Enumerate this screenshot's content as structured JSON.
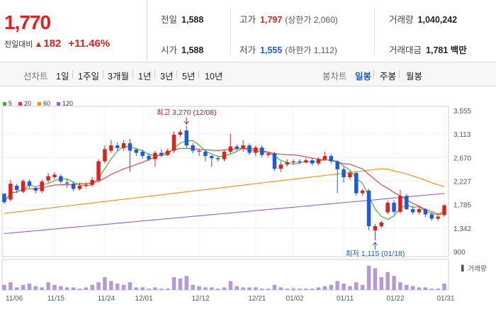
{
  "summary": {
    "current_price": "1,770",
    "change_label": "전일대비",
    "change_value": "182",
    "change_pct": "+11.46%",
    "prev_close_label": "전일",
    "prev_close": "1,588",
    "open_label": "시가",
    "open": "1,588",
    "high_label": "고가",
    "high": "1,797",
    "upper_limit": "(상한가 2,060)",
    "low_label": "저가",
    "low": "1,555",
    "lower_limit": "(하한가 1,112)",
    "volume_label": "거래량",
    "volume": "1,040,242",
    "amount_label": "거래대금",
    "amount": "1,781 백만"
  },
  "toolbar": {
    "line_label": "선차트",
    "line_periods": [
      "1일",
      "1주일",
      "3개월",
      "1년",
      "3년",
      "5년",
      "10년"
    ],
    "candle_label": "봉차트",
    "candle_periods": [
      "일봉",
      "주봉",
      "월봉"
    ],
    "selected_candle": "일봉"
  },
  "colors": {
    "up": "#e02020",
    "down": "#1f5bd8",
    "ma5": "#3aaa35",
    "ma20": "#e0393e",
    "ma60": "#f08c1e",
    "ma120": "#9a5fc9",
    "volume": "#b49ad6"
  },
  "chart_data": {
    "type": "candlestick",
    "moving_averages": [
      "5",
      "20",
      "60",
      "120"
    ],
    "y_ticks": [
      "3,555",
      "3,113",
      "2,670",
      "2,227",
      "1,785",
      "1,342",
      "900"
    ],
    "ylim": [
      900,
      3555
    ],
    "x_ticks": [
      "11/06",
      "11/15",
      "11/24",
      "12/01",
      "12/12",
      "12/21",
      "01/02",
      "01/11",
      "01/22",
      "01/31"
    ],
    "annotations": {
      "high": "최고 3,270 (12/08)",
      "low": "최저 1,115 (01/18)"
    },
    "volume_label": "거래량",
    "candles": [
      [
        1990,
        1830,
        1800,
        2000
      ],
      [
        1880,
        2180,
        1850,
        2250
      ],
      [
        2140,
        2060,
        2000,
        2180
      ],
      [
        2030,
        2230,
        2000,
        2260
      ],
      [
        2220,
        2140,
        2100,
        2260
      ],
      [
        2100,
        2050,
        2000,
        2120
      ],
      [
        2040,
        2220,
        2000,
        2260
      ],
      [
        2240,
        2320,
        2200,
        2380
      ],
      [
        2300,
        2350,
        2260,
        2400
      ],
      [
        2320,
        2220,
        2180,
        2360
      ],
      [
        2200,
        2180,
        2100,
        2260
      ],
      [
        2180,
        2080,
        2040,
        2220
      ],
      [
        2080,
        2140,
        2050,
        2200
      ],
      [
        2140,
        2160,
        2100,
        2200
      ],
      [
        2160,
        2250,
        2120,
        2300
      ],
      [
        2240,
        2600,
        2200,
        2640
      ],
      [
        2600,
        2830,
        2560,
        2900
      ],
      [
        2800,
        2900,
        2760,
        3000
      ],
      [
        2900,
        2850,
        2800,
        2960
      ],
      [
        2850,
        2940,
        2800,
        3000
      ],
      [
        2940,
        2800,
        2400,
        3020
      ],
      [
        2820,
        2760,
        2700,
        2850
      ],
      [
        2780,
        2700,
        2650,
        2820
      ],
      [
        2700,
        2640,
        2600,
        2760
      ],
      [
        2640,
        2760,
        2500,
        2800
      ],
      [
        2760,
        2720,
        2680,
        2830
      ],
      [
        2720,
        2800,
        2700,
        2840
      ],
      [
        2800,
        3100,
        2760,
        3160
      ],
      [
        3100,
        3150,
        3060,
        3200
      ],
      [
        3180,
        2900,
        2850,
        3270
      ],
      [
        2900,
        2800,
        2750,
        2940
      ],
      [
        2800,
        2780,
        2700,
        2840
      ],
      [
        2780,
        2700,
        2600,
        2820
      ],
      [
        2700,
        2660,
        2500,
        2720
      ],
      [
        2660,
        2640,
        2600,
        2700
      ],
      [
        2640,
        2780,
        2600,
        2820
      ],
      [
        2780,
        2880,
        2740,
        3120
      ],
      [
        2880,
        2840,
        2800,
        2920
      ],
      [
        2840,
        2900,
        2780,
        3000
      ],
      [
        2900,
        2760,
        2720,
        2940
      ],
      [
        2760,
        2860,
        2700,
        2900
      ],
      [
        2860,
        2720,
        2680,
        2900
      ],
      [
        2720,
        2750,
        2680,
        2780
      ],
      [
        2750,
        2460,
        2420,
        2780
      ],
      [
        2460,
        2540,
        2400,
        2600
      ],
      [
        2540,
        2580,
        2500,
        2640
      ],
      [
        2580,
        2600,
        2540,
        2640
      ],
      [
        2600,
        2580,
        2540,
        2640
      ],
      [
        2580,
        2620,
        2560,
        2660
      ],
      [
        2620,
        2560,
        2520,
        2660
      ],
      [
        2560,
        2640,
        2520,
        2680
      ],
      [
        2640,
        2700,
        2600,
        2780
      ],
      [
        2700,
        2600,
        2560,
        2740
      ],
      [
        2600,
        2450,
        2000,
        2620
      ],
      [
        2450,
        2300,
        2200,
        2500
      ],
      [
        2300,
        2380,
        2250,
        2420
      ],
      [
        2380,
        2000,
        1950,
        2400
      ],
      [
        2000,
        2050,
        1950,
        2080
      ],
      [
        2050,
        1380,
        1300,
        2080
      ],
      [
        1300,
        1380,
        1115,
        1420
      ],
      [
        1380,
        1450,
        1340,
        1480
      ],
      [
        1640,
        1820,
        1600,
        1860
      ],
      [
        1820,
        1650,
        1600,
        1870
      ],
      [
        1650,
        1950,
        1620,
        2060
      ],
      [
        1950,
        1700,
        1680,
        1980
      ],
      [
        1700,
        1640,
        1600,
        1760
      ],
      [
        1640,
        1700,
        1600,
        1740
      ],
      [
        1700,
        1600,
        1550,
        1720
      ],
      [
        1600,
        1520,
        1480,
        1640
      ],
      [
        1520,
        1560,
        1480,
        1600
      ],
      [
        1588,
        1770,
        1555,
        1797
      ]
    ],
    "volume": [
      0.2,
      0.3,
      0.1,
      0.2,
      0.25,
      0.15,
      0.1,
      0.3,
      0.2,
      0.15,
      0.1,
      0.1,
      0.05,
      0.1,
      0.2,
      0.3,
      0.5,
      0.35,
      0.25,
      0.2,
      0.3,
      0.1,
      0.1,
      0.05,
      0.1,
      0.05,
      0.05,
      0.5,
      0.45,
      0.55,
      0.2,
      0.15,
      0.1,
      0.1,
      0.05,
      0.1,
      0.35,
      0.15,
      0.1,
      0.1,
      0.1,
      0.05,
      0.05,
      0.2,
      0.1,
      0.05,
      0.05,
      0.05,
      0.05,
      0.05,
      0.1,
      0.15,
      0.2,
      0.35,
      0.25,
      0.15,
      0.3,
      0.2,
      0.95,
      0.85,
      0.5,
      0.7,
      0.55,
      0.3,
      0.2,
      0.15,
      0.1,
      0.1,
      0.05,
      0.05,
      0.25
    ]
  }
}
